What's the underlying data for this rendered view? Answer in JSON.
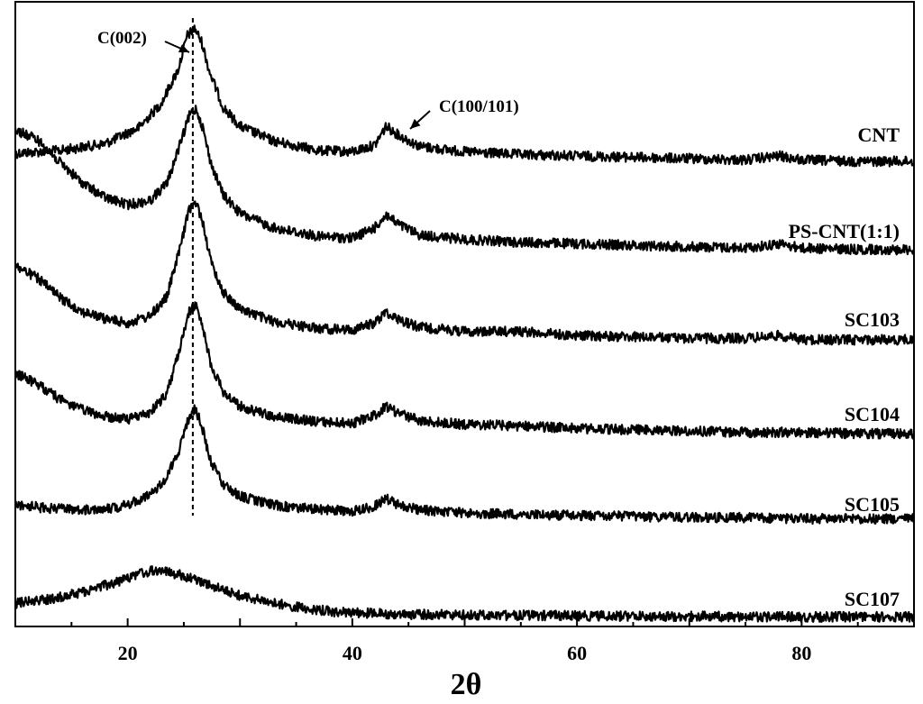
{
  "chart_data": {
    "type": "line",
    "xlabel": "2θ",
    "ylabel": "",
    "xlim": [
      10,
      90
    ],
    "xticks": [
      20,
      40,
      60,
      80
    ],
    "grid": false,
    "legend": "none",
    "series": [
      {
        "name": "CNT",
        "x": [
          10,
          14,
          18,
          21,
          23,
          24.5,
          25.3,
          26,
          26.6,
          27.3,
          28.5,
          30,
          33,
          37,
          40,
          42,
          43,
          44,
          46,
          50,
          55,
          60,
          65,
          70,
          75,
          78,
          80,
          85,
          90
        ],
        "y": [
          0.08,
          0.1,
          0.15,
          0.27,
          0.45,
          0.7,
          0.95,
          1.0,
          0.9,
          0.68,
          0.42,
          0.28,
          0.17,
          0.1,
          0.09,
          0.14,
          0.28,
          0.22,
          0.13,
          0.09,
          0.07,
          0.06,
          0.05,
          0.04,
          0.03,
          0.06,
          0.03,
          0.02,
          0.02
        ]
      },
      {
        "name": "PS-CNT(1:1)",
        "x": [
          10,
          12,
          14,
          16,
          18,
          20,
          22,
          23.5,
          24.8,
          25.5,
          26.1,
          26.7,
          27.4,
          28.5,
          30,
          33,
          37,
          40,
          42,
          43,
          44,
          46,
          50,
          55,
          60,
          65,
          70,
          75,
          78,
          80,
          85,
          90
        ],
        "y": [
          0.85,
          0.78,
          0.62,
          0.48,
          0.38,
          0.33,
          0.36,
          0.48,
          0.78,
          0.95,
          1.0,
          0.86,
          0.62,
          0.4,
          0.27,
          0.17,
          0.11,
          0.1,
          0.17,
          0.26,
          0.2,
          0.12,
          0.09,
          0.07,
          0.06,
          0.05,
          0.04,
          0.03,
          0.06,
          0.03,
          0.02,
          0.02
        ]
      },
      {
        "name": "SC103",
        "x": [
          10,
          12,
          14,
          16,
          18,
          20,
          22,
          23.5,
          24.8,
          25.5,
          26.1,
          26.7,
          27.4,
          28.5,
          30,
          33,
          37,
          40,
          42,
          43,
          44,
          46,
          50,
          55,
          60,
          65,
          70,
          75,
          78,
          80,
          85,
          90
        ],
        "y": [
          0.55,
          0.46,
          0.32,
          0.22,
          0.17,
          0.14,
          0.19,
          0.33,
          0.72,
          0.96,
          1.0,
          0.86,
          0.58,
          0.36,
          0.24,
          0.15,
          0.1,
          0.09,
          0.14,
          0.22,
          0.17,
          0.11,
          0.08,
          0.08,
          0.05,
          0.04,
          0.03,
          0.03,
          0.05,
          0.02,
          0.02,
          0.02
        ]
      },
      {
        "name": "SC104",
        "x": [
          10,
          12,
          14,
          16,
          18,
          20,
          22,
          23.5,
          24.8,
          25.5,
          26.1,
          26.7,
          27.4,
          28.5,
          30,
          33,
          37,
          40,
          42,
          43,
          44,
          46,
          50,
          55,
          60,
          65,
          70,
          75,
          78,
          80,
          85,
          90
        ],
        "y": [
          0.48,
          0.4,
          0.28,
          0.2,
          0.15,
          0.13,
          0.18,
          0.33,
          0.72,
          0.96,
          1.0,
          0.84,
          0.55,
          0.34,
          0.23,
          0.15,
          0.11,
          0.1,
          0.16,
          0.23,
          0.18,
          0.12,
          0.09,
          0.08,
          0.06,
          0.05,
          0.04,
          0.03,
          0.03,
          0.03,
          0.02,
          0.02
        ]
      },
      {
        "name": "SC105",
        "x": [
          10,
          13,
          16,
          19,
          21,
          23,
          24.5,
          25.3,
          26,
          26.6,
          27.3,
          28.5,
          30,
          33,
          37,
          40,
          42,
          43,
          44,
          46,
          50,
          55,
          60,
          65,
          70,
          75,
          80,
          85,
          90
        ],
        "y": [
          0.15,
          0.11,
          0.1,
          0.12,
          0.18,
          0.32,
          0.6,
          0.88,
          1.0,
          0.85,
          0.55,
          0.32,
          0.22,
          0.14,
          0.1,
          0.09,
          0.13,
          0.2,
          0.15,
          0.1,
          0.07,
          0.06,
          0.05,
          0.04,
          0.03,
          0.03,
          0.02,
          0.02,
          0.02
        ]
      },
      {
        "name": "SC107",
        "x": [
          10,
          13,
          16,
          19,
          21,
          22.5,
          24,
          26,
          28,
          30,
          33,
          36,
          38,
          40,
          45,
          50,
          55,
          60,
          70,
          80,
          90
        ],
        "y": [
          0.3,
          0.38,
          0.52,
          0.72,
          0.88,
          0.95,
          0.9,
          0.78,
          0.6,
          0.45,
          0.3,
          0.2,
          0.14,
          0.11,
          0.08,
          0.07,
          0.06,
          0.05,
          0.04,
          0.03,
          0.03
        ]
      }
    ],
    "annotations": [
      {
        "text": "C(002)",
        "x": 25.8
      },
      {
        "text": "C(100/101)",
        "x": 43.5
      }
    ],
    "reference_line": {
      "x": 25.8,
      "style": "dashed"
    }
  }
}
